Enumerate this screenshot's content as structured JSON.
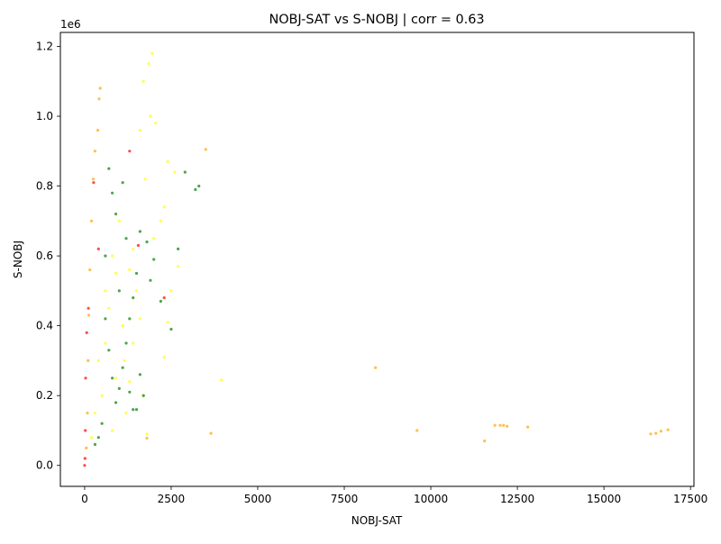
{
  "chart_data": {
    "type": "scatter",
    "title": "NOBJ-SAT vs S-NOBJ | corr = 0.63",
    "xlabel": "NOBJ-SAT",
    "ylabel": "S-NOBJ",
    "y_offset_label": "1e6",
    "xlim": [
      -700,
      17600
    ],
    "ylim": [
      -60000,
      1240000
    ],
    "x_ticks": [
      0,
      2500,
      5000,
      7500,
      10000,
      12500,
      15000,
      17500
    ],
    "x_tick_labels": [
      "0",
      "2500",
      "5000",
      "7500",
      "10000",
      "12500",
      "15000",
      "17500"
    ],
    "y_ticks": [
      0,
      200000,
      400000,
      600000,
      800000,
      1000000,
      1200000
    ],
    "y_tick_labels": [
      "0.0",
      "0.2",
      "0.4",
      "0.6",
      "0.8",
      "1.0",
      "1.2"
    ],
    "grid": false,
    "legend": "none",
    "colors": {
      "red": "#ff0000",
      "orange": "#ffa500",
      "yellow": "#ffff00",
      "green": "#008000"
    },
    "series": [
      {
        "color": "yellow",
        "points": [
          [
            1950,
            1180000
          ],
          [
            1850,
            1150000
          ],
          [
            1700,
            1100000
          ],
          [
            1900,
            1000000
          ],
          [
            2050,
            980000
          ],
          [
            1600,
            960000
          ],
          [
            2400,
            870000
          ],
          [
            1750,
            820000
          ],
          [
            2600,
            840000
          ],
          [
            2300,
            740000
          ],
          [
            2200,
            700000
          ],
          [
            2000,
            650000
          ],
          [
            2700,
            570000
          ],
          [
            2500,
            500000
          ],
          [
            2400,
            410000
          ],
          [
            2300,
            310000
          ],
          [
            3950,
            245000
          ],
          [
            1300,
            240000
          ],
          [
            1700,
            200000
          ],
          [
            1200,
            150000
          ],
          [
            1800,
            90000
          ],
          [
            800,
            600000
          ],
          [
            600,
            500000
          ],
          [
            1000,
            700000
          ],
          [
            900,
            550000
          ],
          [
            1100,
            400000
          ],
          [
            700,
            450000
          ],
          [
            1400,
            620000
          ],
          [
            1500,
            500000
          ],
          [
            1300,
            560000
          ],
          [
            1150,
            300000
          ],
          [
            1400,
            350000
          ],
          [
            900,
            250000
          ],
          [
            500,
            200000
          ],
          [
            600,
            350000
          ],
          [
            400,
            300000
          ],
          [
            300,
            150000
          ],
          [
            200,
            80000
          ],
          [
            800,
            100000
          ],
          [
            1600,
            420000
          ]
        ]
      },
      {
        "color": "green",
        "points": [
          [
            3300,
            800000
          ],
          [
            3200,
            790000
          ],
          [
            2900,
            840000
          ],
          [
            2700,
            620000
          ],
          [
            2500,
            390000
          ],
          [
            2200,
            470000
          ],
          [
            2000,
            590000
          ],
          [
            1900,
            530000
          ],
          [
            1800,
            640000
          ],
          [
            1600,
            670000
          ],
          [
            1500,
            550000
          ],
          [
            1400,
            480000
          ],
          [
            1300,
            420000
          ],
          [
            1200,
            350000
          ],
          [
            1100,
            280000
          ],
          [
            1000,
            220000
          ],
          [
            900,
            180000
          ],
          [
            800,
            250000
          ],
          [
            700,
            330000
          ],
          [
            600,
            420000
          ],
          [
            900,
            720000
          ],
          [
            1100,
            810000
          ],
          [
            800,
            780000
          ],
          [
            700,
            850000
          ],
          [
            600,
            600000
          ],
          [
            1200,
            650000
          ],
          [
            1000,
            500000
          ],
          [
            1700,
            200000
          ],
          [
            1500,
            160000
          ],
          [
            1300,
            210000
          ],
          [
            500,
            120000
          ],
          [
            400,
            80000
          ],
          [
            300,
            60000
          ],
          [
            1400,
            160000
          ],
          [
            1600,
            260000
          ]
        ]
      },
      {
        "color": "orange",
        "points": [
          [
            8400,
            280000
          ],
          [
            9600,
            100000
          ],
          [
            11550,
            70000
          ],
          [
            11850,
            115000
          ],
          [
            12000,
            115000
          ],
          [
            12100,
            115000
          ],
          [
            12200,
            112000
          ],
          [
            12800,
            110000
          ],
          [
            16350,
            90000
          ],
          [
            16500,
            92000
          ],
          [
            16650,
            98000
          ],
          [
            16850,
            102000
          ],
          [
            3650,
            92000
          ],
          [
            3500,
            905000
          ],
          [
            1800,
            78000
          ],
          [
            450,
            1080000
          ],
          [
            420,
            1050000
          ],
          [
            380,
            960000
          ],
          [
            300,
            900000
          ],
          [
            250,
            820000
          ],
          [
            200,
            700000
          ],
          [
            150,
            560000
          ],
          [
            120,
            430000
          ],
          [
            100,
            300000
          ],
          [
            80,
            150000
          ],
          [
            50,
            50000
          ]
        ]
      },
      {
        "color": "red",
        "points": [
          [
            1300,
            900000
          ],
          [
            1550,
            630000
          ],
          [
            260,
            810000
          ],
          [
            110,
            450000
          ],
          [
            60,
            380000
          ],
          [
            30,
            250000
          ],
          [
            20,
            100000
          ],
          [
            10,
            20000
          ],
          [
            0,
            0
          ],
          [
            400,
            620000
          ],
          [
            2300,
            480000
          ]
        ]
      }
    ]
  }
}
